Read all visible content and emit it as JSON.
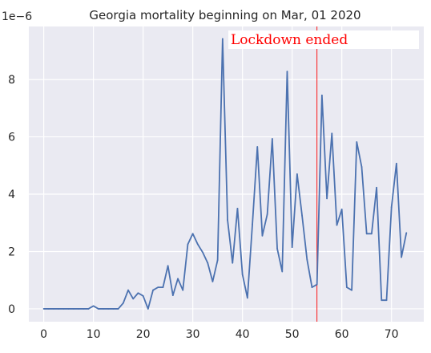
{
  "chart_data": {
    "type": "line",
    "title": "Georgia mortality beginning on Mar, 01 2020",
    "xlabel": "",
    "ylabel": "",
    "y_offset_label": "1e−6",
    "xlim": [
      -3,
      76.5
    ],
    "ylim": [
      -0.45,
      9.85
    ],
    "xticks": [
      0,
      10,
      20,
      30,
      40,
      50,
      60,
      70
    ],
    "yticks": [
      0,
      2,
      4,
      6,
      8
    ],
    "grid": true,
    "series": [
      {
        "color": "#4c72b0",
        "x": [
          0,
          1,
          2,
          3,
          4,
          5,
          6,
          7,
          8,
          9,
          10,
          11,
          12,
          13,
          14,
          15,
          16,
          17,
          18,
          19,
          20,
          21,
          22,
          23,
          24,
          25,
          26,
          27,
          28,
          29,
          30,
          31,
          32,
          33,
          34,
          35,
          36,
          37,
          38,
          39,
          40,
          41,
          42,
          43,
          44,
          45,
          46,
          47,
          48,
          49,
          50,
          51,
          52,
          53,
          54,
          55,
          56,
          57,
          58,
          59,
          60,
          61,
          62,
          63,
          64,
          65,
          66,
          67,
          68,
          69,
          70,
          71,
          72,
          73
        ],
        "values": [
          0,
          0,
          0,
          0,
          0,
          0,
          0,
          0,
          0,
          0,
          0.1,
          0,
          0,
          0,
          0,
          0,
          0.2,
          0.65,
          0.35,
          0.55,
          0.45,
          0,
          0.65,
          0.75,
          0.75,
          1.5,
          0.47,
          1.05,
          0.65,
          2.25,
          2.62,
          2.25,
          1.97,
          1.6,
          0.95,
          1.7,
          9.42,
          3.1,
          1.6,
          3.5,
          1.2,
          0.38,
          2.95,
          5.65,
          2.55,
          3.3,
          5.93,
          2.1,
          1.3,
          8.28,
          2.15,
          4.7,
          3.25,
          1.72,
          0.75,
          0.85,
          7.45,
          3.85,
          6.12,
          2.92,
          3.47,
          0.75,
          0.65,
          5.82,
          4.95,
          2.62,
          2.62,
          4.23,
          0.3,
          0.3,
          3.55,
          5.07,
          1.8,
          2.65
        ]
      }
    ],
    "vline": {
      "x": 55,
      "color": "#ff0000"
    },
    "annotation": {
      "text": "Lockdown  ended",
      "color": "#ff0000"
    }
  }
}
